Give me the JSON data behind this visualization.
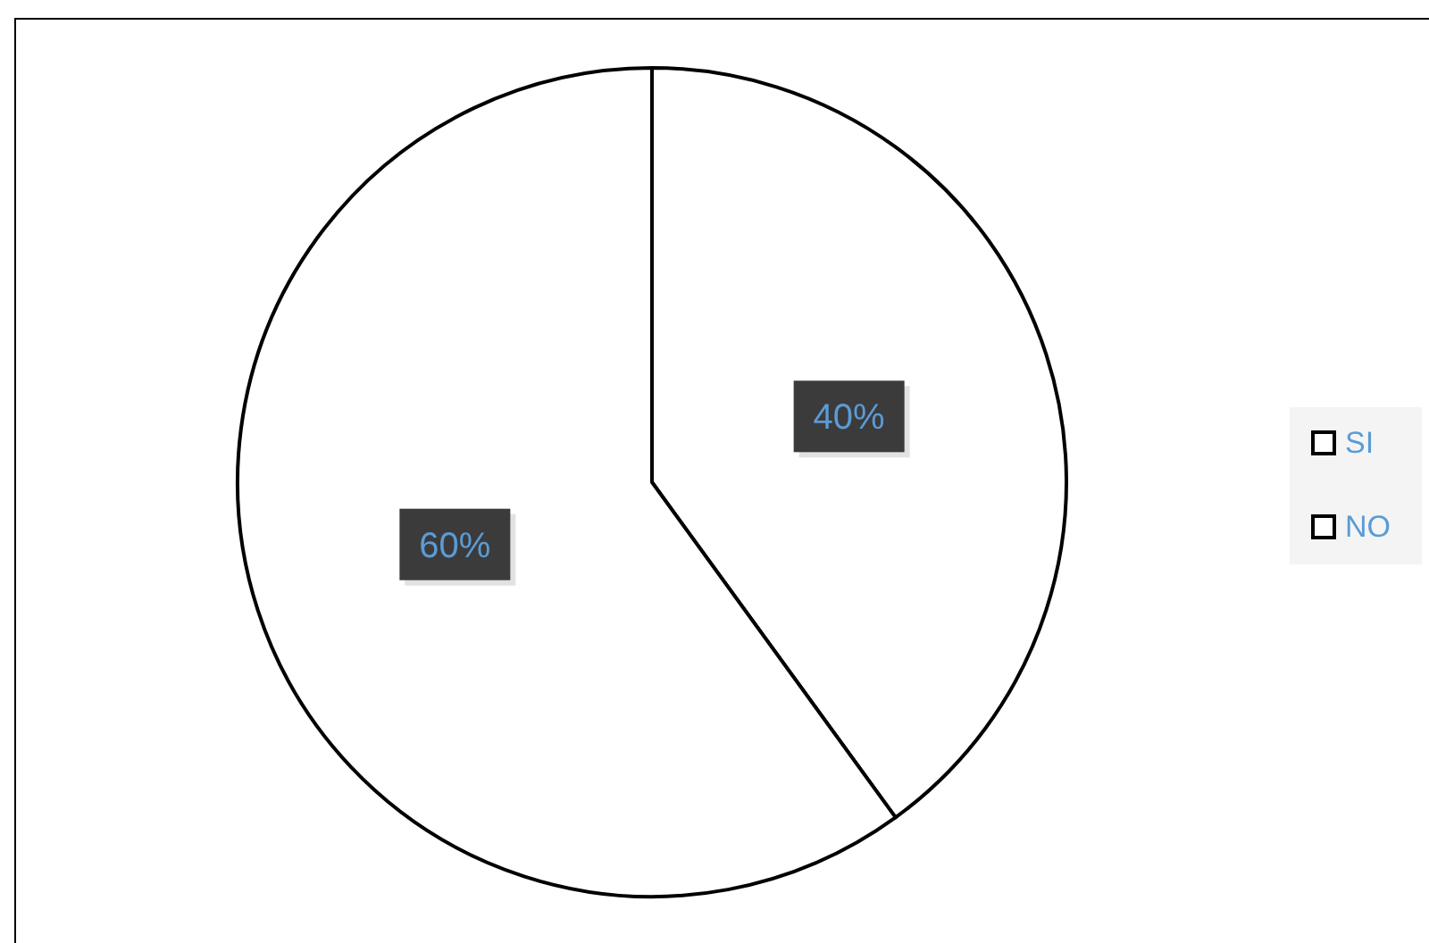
{
  "chart_data": {
    "type": "pie",
    "categories": [
      "SI",
      "NO"
    ],
    "values": [
      40,
      60
    ],
    "colors": [
      "#ffffff",
      "#ffffff"
    ],
    "value_labels": [
      "40%",
      "60%"
    ],
    "legend": "right"
  }
}
